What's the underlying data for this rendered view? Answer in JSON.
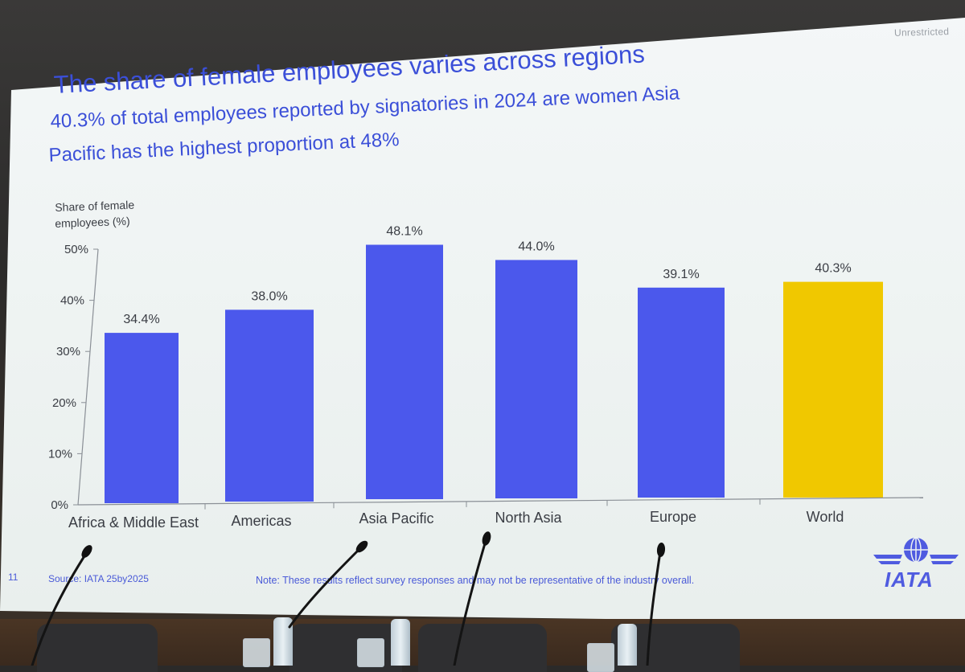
{
  "slide": {
    "classification": "Unrestricted",
    "title": "The share of female employees varies across regions",
    "subtitle_line1": "40.3% of total employees reported by signatories in 2024 are women Asia",
    "subtitle_line2": "Pacific has the highest proportion at 48%",
    "ylabel_line1": "Share of female",
    "ylabel_line2": "employees (%)",
    "page_number": "11",
    "source": "Source: IATA 25by2025",
    "note": "Note: These results reflect survey responses and may not be representative of the industry overall.",
    "logo_text": "IATA"
  },
  "colors": {
    "bar": "#4b58ec",
    "highlight_bar": "#f0c800",
    "text": "#3b4fd8"
  },
  "chart_data": {
    "type": "bar",
    "categories": [
      "Africa & Middle East",
      "Americas",
      "Asia Pacific",
      "North Asia",
      "Europe",
      "World"
    ],
    "values": [
      34.4,
      38.0,
      48.1,
      44.0,
      39.1,
      40.3
    ],
    "data_labels": [
      "34.4%",
      "38.0%",
      "48.1%",
      "44.0%",
      "39.1%",
      "40.3%"
    ],
    "highlight": "World",
    "ylabel": "Share of female employees (%)",
    "yticks": [
      "0%",
      "10%",
      "20%",
      "30%",
      "40%",
      "50%"
    ],
    "ylim": [
      0,
      50
    ],
    "grid": false,
    "legend": "none"
  }
}
